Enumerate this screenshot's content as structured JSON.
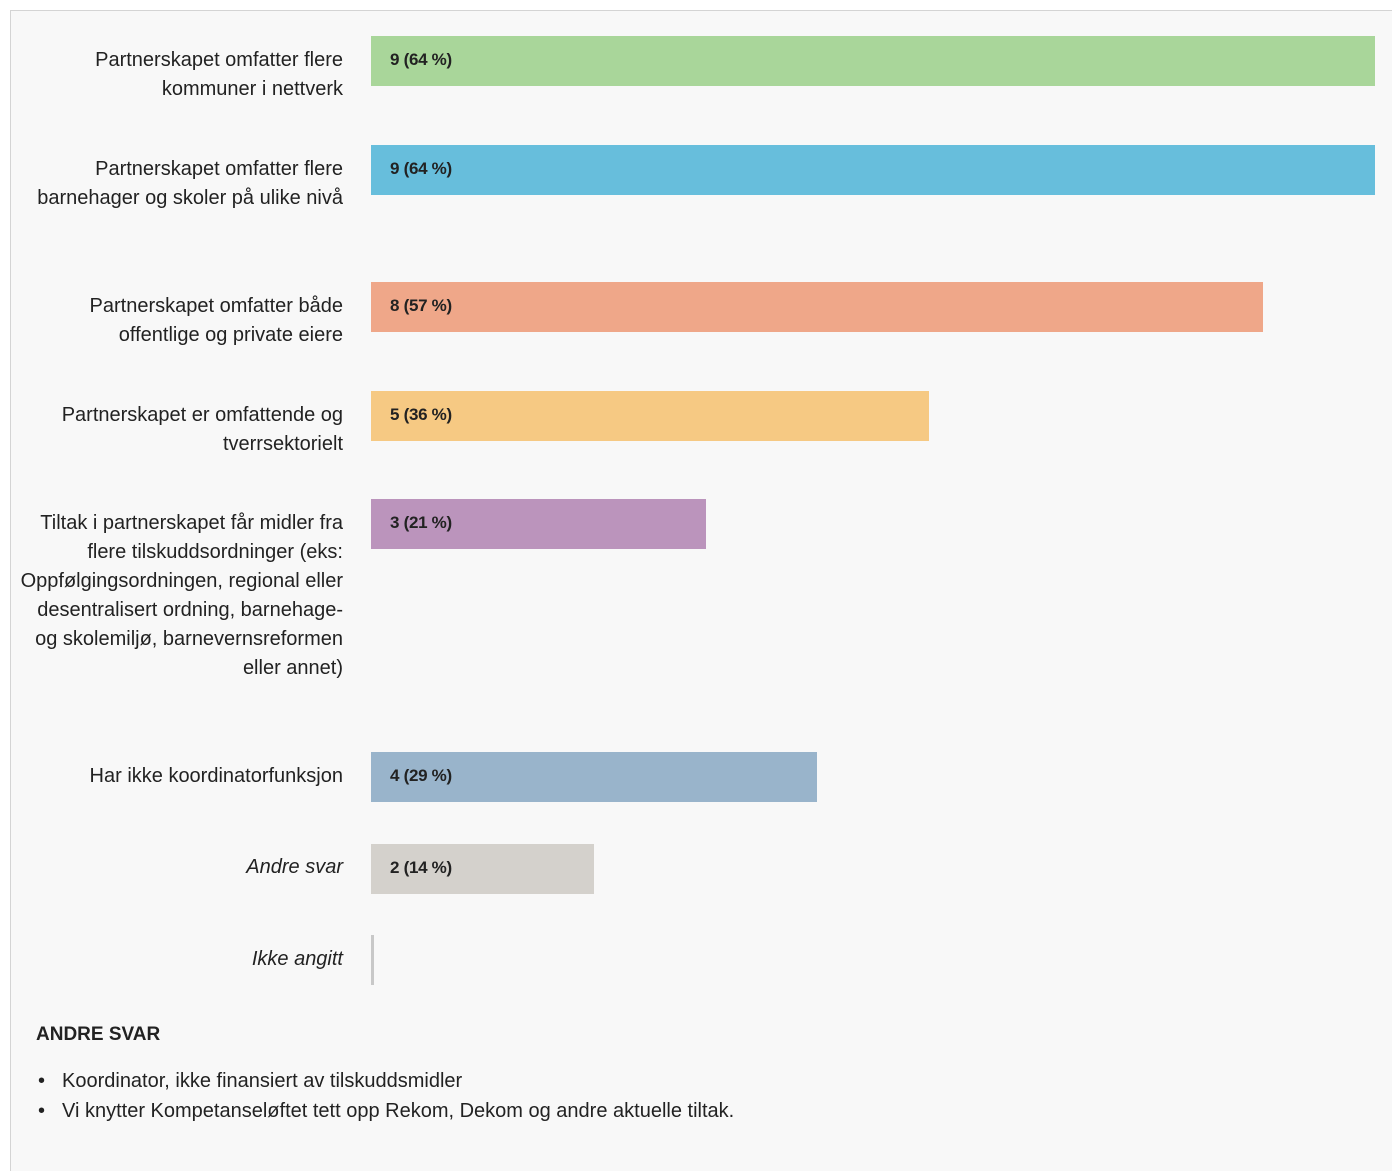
{
  "chart_data": {
    "type": "bar",
    "orientation": "horizontal",
    "categories": [
      "Partnerskapet omfatter flere kommuner i nettverk",
      "Partnerskapet omfatter flere barnehager og skoler på ulike nivå",
      "Partnerskapet omfatter både offentlige og private eiere",
      "Partnerskapet er omfattende og tverrsektorielt",
      "Tiltak i partnerskapet får midler fra flere tilskuddsordninger (eks: Oppfølgingsordningen, regional eller desentralisert ordning, barnehage- og skolemiljø, barnevernsreformen eller annet)",
      "Har ikke koordinatorfunksjon",
      "Andre svar",
      "Ikke angitt"
    ],
    "values": [
      9,
      9,
      8,
      5,
      3,
      4,
      2,
      0
    ],
    "value_labels": [
      "9 (64 %)",
      "9 (64 %)",
      "8 (57 %)",
      "5 (36 %)",
      "3 (21 %)",
      "4 (29 %)",
      "2 (14 %)",
      ""
    ],
    "italic": [
      false,
      false,
      false,
      false,
      false,
      false,
      true,
      true
    ],
    "colors": [
      "#a9d69a",
      "#67bedc",
      "#efa789",
      "#f6c983",
      "#bb94bc",
      "#99b4cb",
      "#d4d1cc",
      "#c8c8c8"
    ],
    "xlim": [
      0,
      9
    ]
  },
  "other_answers": {
    "heading": "ANDRE SVAR",
    "items": [
      "Koordinator, ikke finansiert av tilskuddsmidler",
      "Vi knytter Kompetanseløftet tett opp Rekom, Dekom og andre aktuelle tiltak."
    ]
  }
}
